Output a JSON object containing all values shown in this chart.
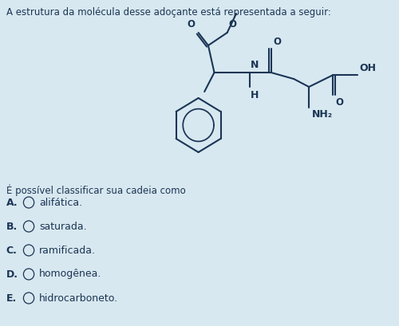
{
  "title": "A estrutura da molécula desse adoçante está representada a seguir:",
  "question": "É possível classificar sua cadeia como",
  "options": [
    {
      "label": "A.",
      "text": "alifática."
    },
    {
      "label": "B.",
      "text": "saturada."
    },
    {
      "label": "C.",
      "text": "ramificada."
    },
    {
      "label": "D.",
      "text": "homogênea."
    },
    {
      "label": "E.",
      "text": "hidrocarboneto."
    }
  ],
  "bg_color": "#d8e8f0",
  "text_color": "#1a3555",
  "molecule_color": "#1a3555",
  "font_size_title": 8.5,
  "font_size_question": 8.5,
  "font_size_options": 9.0,
  "font_size_molecule": 8.5
}
